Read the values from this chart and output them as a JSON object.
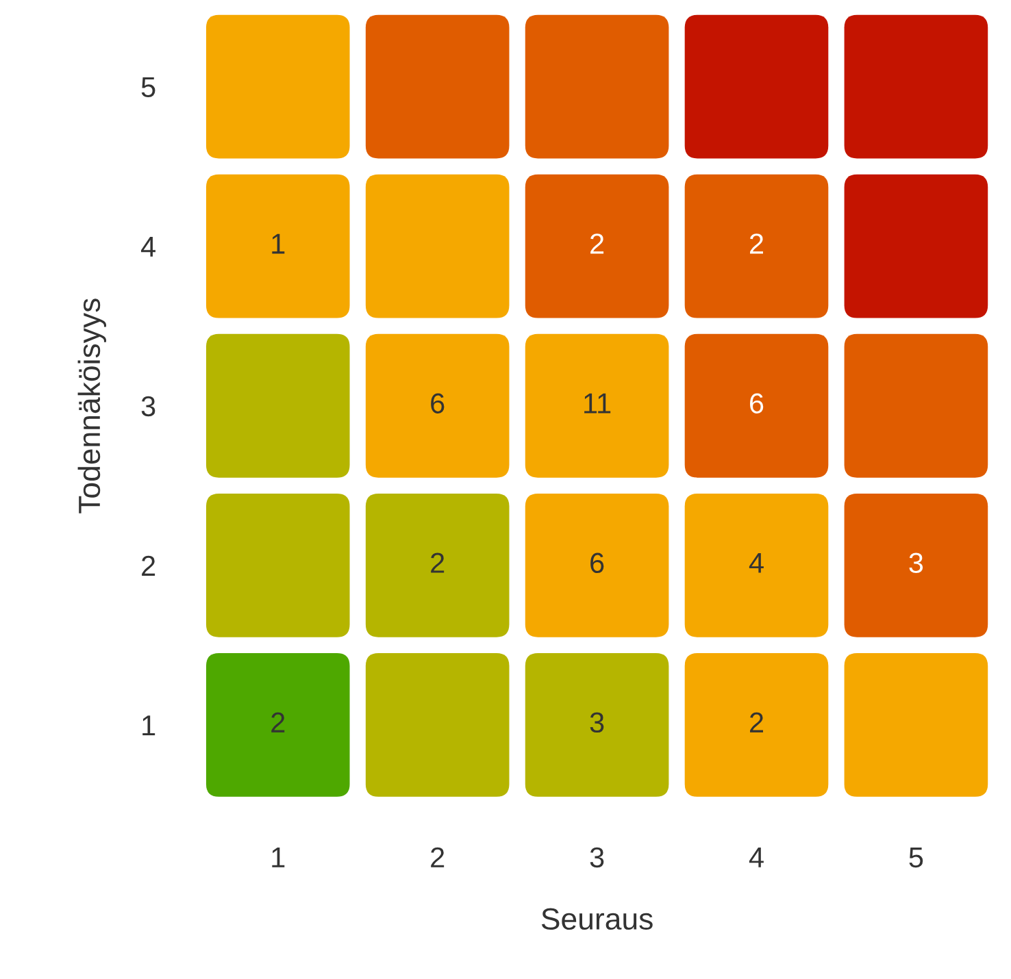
{
  "chart_data": {
    "type": "heatmap",
    "xlabel": "Seuraus",
    "ylabel": "Todennäköisyys",
    "categories": [
      "1",
      "2",
      "3",
      "4",
      "5"
    ],
    "y_categories": [
      "5",
      "4",
      "3",
      "2",
      "1"
    ],
    "cells": [
      [
        null,
        null,
        null,
        null,
        null
      ],
      [
        1,
        null,
        2,
        2,
        null
      ],
      [
        null,
        6,
        11,
        6,
        null
      ],
      [
        null,
        2,
        6,
        4,
        3
      ],
      [
        2,
        null,
        3,
        2,
        null
      ]
    ],
    "colors": [
      [
        "#f5a800",
        "#e05c00",
        "#e05c00",
        "#c41400",
        "#c41400"
      ],
      [
        "#f5a800",
        "#f5a800",
        "#e05c00",
        "#e05c00",
        "#c41400"
      ],
      [
        "#b5b500",
        "#f5a800",
        "#f5a800",
        "#e05c00",
        "#e05c00"
      ],
      [
        "#b5b500",
        "#b5b500",
        "#f5a800",
        "#f5a800",
        "#e05c00"
      ],
      [
        "#4ea800",
        "#b5b500",
        "#b5b500",
        "#f5a800",
        "#f5a800"
      ]
    ],
    "data_labels": true
  }
}
